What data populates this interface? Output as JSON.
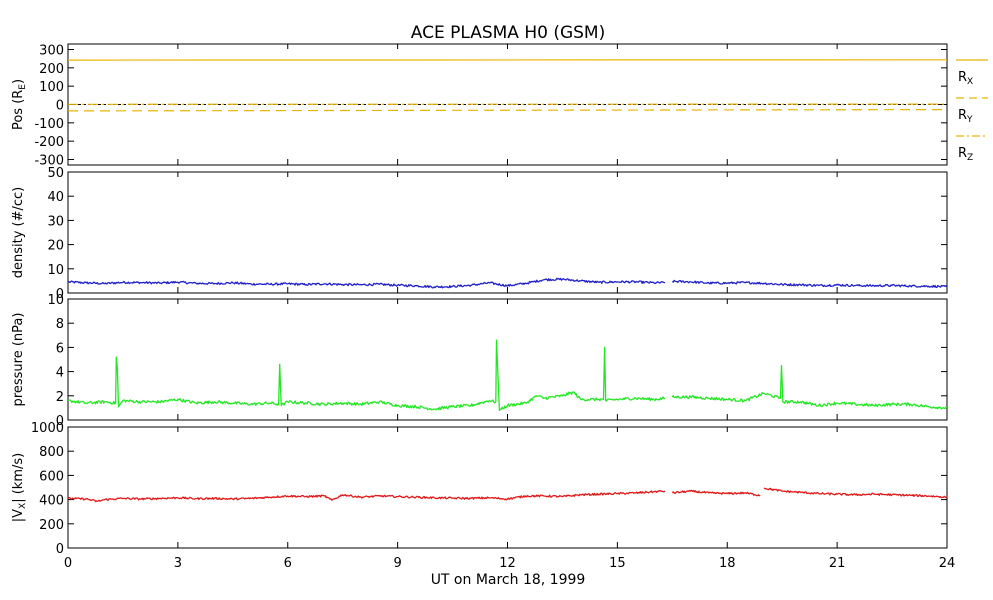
{
  "chart_data": {
    "title": "ACE PLASMA H0 (GSM)",
    "xlabel": "UT on March 18, 1999",
    "x_range": [
      0,
      24
    ],
    "x_ticks": [
      0,
      3,
      6,
      9,
      12,
      15,
      18,
      21,
      24
    ],
    "x_tick_labels": [
      "0",
      "3",
      "6",
      "9",
      "12",
      "15",
      "18",
      "21",
      "24"
    ],
    "panels": [
      {
        "id": "pos",
        "type": "line",
        "ylabel": "Pos (R",
        "ylabel_sub": "E",
        "ylabel_suffix": ")",
        "ylim": [
          -330,
          330
        ],
        "y_ticks": [
          -300,
          -200,
          -100,
          0,
          100,
          200,
          300
        ],
        "y_tick_labels": [
          "-300",
          "-200",
          "-100",
          "0",
          "100",
          "200",
          "300"
        ],
        "series": [
          {
            "name": "R",
            "sub": "X",
            "color": "#e8b400",
            "style": "solid",
            "values": [
              {
                "x": 0,
                "y": 242
              },
              {
                "x": 24,
                "y": 244
              }
            ]
          },
          {
            "name": "R",
            "sub": "Y",
            "color": "#e8b400",
            "style": "dashed",
            "values": [
              {
                "x": 0,
                "y": -35
              },
              {
                "x": 24,
                "y": -28
              }
            ]
          },
          {
            "name": "R",
            "sub": "Z",
            "color": "#e8b400",
            "style": "dashdot",
            "values": [
              {
                "x": 0,
                "y": 1
              },
              {
                "x": 24,
                "y": 2
              }
            ]
          }
        ],
        "reference_line": 0
      },
      {
        "id": "density",
        "type": "line",
        "ylabel": "density (#/cc)",
        "ylim": [
          0,
          50
        ],
        "y_ticks": [
          0,
          10,
          20,
          30,
          40,
          50
        ],
        "y_tick_labels": [
          "0",
          "10",
          "20",
          "30",
          "40",
          "50"
        ],
        "series": [
          {
            "color": "#2020c8",
            "gaps": [
              [
                16.3,
                16.5
              ]
            ],
            "values": [
              {
                "x": 0,
                "y": 4.6
              },
              {
                "x": 0.5,
                "y": 4.2
              },
              {
                "x": 1,
                "y": 3.9
              },
              {
                "x": 1.5,
                "y": 4.4
              },
              {
                "x": 2,
                "y": 4.3
              },
              {
                "x": 2.5,
                "y": 4.1
              },
              {
                "x": 3,
                "y": 4.5
              },
              {
                "x": 3.5,
                "y": 4.0
              },
              {
                "x": 4,
                "y": 3.9
              },
              {
                "x": 4.5,
                "y": 4.2
              },
              {
                "x": 5,
                "y": 3.7
              },
              {
                "x": 5.5,
                "y": 3.6
              },
              {
                "x": 6,
                "y": 3.8
              },
              {
                "x": 6.5,
                "y": 3.5
              },
              {
                "x": 7,
                "y": 3.8
              },
              {
                "x": 7.5,
                "y": 3.5
              },
              {
                "x": 8,
                "y": 3.4
              },
              {
                "x": 8.5,
                "y": 3.6
              },
              {
                "x": 9,
                "y": 3.2
              },
              {
                "x": 9.5,
                "y": 3.0
              },
              {
                "x": 10,
                "y": 2.5
              },
              {
                "x": 10.5,
                "y": 2.7
              },
              {
                "x": 11,
                "y": 3.2
              },
              {
                "x": 11.5,
                "y": 4.2
              },
              {
                "x": 12,
                "y": 3.0
              },
              {
                "x": 12.5,
                "y": 4.0
              },
              {
                "x": 13,
                "y": 5.5
              },
              {
                "x": 13.5,
                "y": 5.7
              },
              {
                "x": 14,
                "y": 5.0
              },
              {
                "x": 14.5,
                "y": 4.4
              },
              {
                "x": 15,
                "y": 4.6
              },
              {
                "x": 15.5,
                "y": 4.6
              },
              {
                "x": 16,
                "y": 4.2
              },
              {
                "x": 16.3,
                "y": 4.3
              },
              {
                "x": 16.5,
                "y": 4.8
              },
              {
                "x": 17,
                "y": 4.6
              },
              {
                "x": 17.5,
                "y": 4.1
              },
              {
                "x": 18,
                "y": 4.1
              },
              {
                "x": 18.5,
                "y": 4.3
              },
              {
                "x": 19,
                "y": 4.0
              },
              {
                "x": 19.5,
                "y": 3.5
              },
              {
                "x": 20,
                "y": 3.4
              },
              {
                "x": 20.5,
                "y": 3.1
              },
              {
                "x": 21,
                "y": 3.3
              },
              {
                "x": 21.5,
                "y": 3.1
              },
              {
                "x": 22,
                "y": 3.0
              },
              {
                "x": 22.5,
                "y": 3.1
              },
              {
                "x": 23,
                "y": 2.9
              },
              {
                "x": 23.5,
                "y": 2.8
              },
              {
                "x": 24,
                "y": 2.6
              }
            ]
          }
        ]
      },
      {
        "id": "pressure",
        "type": "line",
        "ylabel": "pressure (nPa)",
        "ylim": [
          0,
          10
        ],
        "y_ticks": [
          0,
          2,
          4,
          6,
          8,
          10
        ],
        "y_tick_labels": [
          "0",
          "2",
          "4",
          "6",
          "8",
          "10"
        ],
        "series": [
          {
            "color": "#22e822",
            "gaps": [
              [
                16.3,
                16.5
              ]
            ],
            "values": [
              {
                "x": 0,
                "y": 1.6
              },
              {
                "x": 0.5,
                "y": 1.4
              },
              {
                "x": 1,
                "y": 1.5
              },
              {
                "x": 1.3,
                "y": 1.4
              },
              {
                "x": 1.32,
                "y": 5.2
              },
              {
                "x": 1.35,
                "y": 4.2
              },
              {
                "x": 1.38,
                "y": 1.1
              },
              {
                "x": 1.5,
                "y": 1.6
              },
              {
                "x": 2,
                "y": 1.5
              },
              {
                "x": 2.5,
                "y": 1.5
              },
              {
                "x": 3,
                "y": 1.7
              },
              {
                "x": 3.5,
                "y": 1.4
              },
              {
                "x": 4,
                "y": 1.5
              },
              {
                "x": 4.5,
                "y": 1.4
              },
              {
                "x": 5,
                "y": 1.3
              },
              {
                "x": 5.5,
                "y": 1.4
              },
              {
                "x": 5.75,
                "y": 1.3
              },
              {
                "x": 5.78,
                "y": 4.6
              },
              {
                "x": 5.82,
                "y": 1.2
              },
              {
                "x": 6,
                "y": 1.5
              },
              {
                "x": 6.5,
                "y": 1.4
              },
              {
                "x": 7,
                "y": 1.3
              },
              {
                "x": 7.5,
                "y": 1.4
              },
              {
                "x": 8,
                "y": 1.3
              },
              {
                "x": 8.5,
                "y": 1.5
              },
              {
                "x": 9,
                "y": 1.2
              },
              {
                "x": 9.5,
                "y": 1.1
              },
              {
                "x": 10,
                "y": 0.9
              },
              {
                "x": 10.5,
                "y": 1.1
              },
              {
                "x": 11,
                "y": 1.2
              },
              {
                "x": 11.5,
                "y": 1.6
              },
              {
                "x": 11.68,
                "y": 1.5
              },
              {
                "x": 11.7,
                "y": 6.6
              },
              {
                "x": 11.73,
                "y": 4.4
              },
              {
                "x": 11.78,
                "y": 0.8
              },
              {
                "x": 12,
                "y": 1.2
              },
              {
                "x": 12.5,
                "y": 1.4
              },
              {
                "x": 12.8,
                "y": 2.0
              },
              {
                "x": 13,
                "y": 1.8
              },
              {
                "x": 13.5,
                "y": 2.0
              },
              {
                "x": 13.8,
                "y": 2.3
              },
              {
                "x": 14,
                "y": 1.7
              },
              {
                "x": 14.5,
                "y": 1.7
              },
              {
                "x": 14.62,
                "y": 1.7
              },
              {
                "x": 14.65,
                "y": 6.0
              },
              {
                "x": 14.68,
                "y": 1.6
              },
              {
                "x": 15,
                "y": 1.7
              },
              {
                "x": 15.5,
                "y": 1.8
              },
              {
                "x": 16,
                "y": 1.7
              },
              {
                "x": 16.3,
                "y": 1.8
              },
              {
                "x": 16.5,
                "y": 1.9
              },
              {
                "x": 17,
                "y": 1.9
              },
              {
                "x": 17.5,
                "y": 1.8
              },
              {
                "x": 18,
                "y": 1.7
              },
              {
                "x": 18.5,
                "y": 1.6
              },
              {
                "x": 19,
                "y": 2.2
              },
              {
                "x": 19.45,
                "y": 1.8
              },
              {
                "x": 19.48,
                "y": 4.5
              },
              {
                "x": 19.52,
                "y": 1.5
              },
              {
                "x": 20,
                "y": 1.5
              },
              {
                "x": 20.5,
                "y": 1.2
              },
              {
                "x": 21,
                "y": 1.4
              },
              {
                "x": 21.5,
                "y": 1.3
              },
              {
                "x": 22,
                "y": 1.2
              },
              {
                "x": 22.5,
                "y": 1.3
              },
              {
                "x": 23,
                "y": 1.3
              },
              {
                "x": 23.5,
                "y": 1.1
              },
              {
                "x": 24,
                "y": 1.0
              }
            ]
          }
        ]
      },
      {
        "id": "vx",
        "type": "line",
        "ylabel_prefix": "|V",
        "ylabel_sub": "X",
        "ylabel_suffix": "| (km/s)",
        "ylim": [
          0,
          1000
        ],
        "y_ticks": [
          0,
          200,
          400,
          600,
          800,
          1000
        ],
        "y_tick_labels": [
          "0",
          "200",
          "400",
          "600",
          "800",
          "1000"
        ],
        "series": [
          {
            "color": "#e01818",
            "gaps": [
              [
                16.3,
                16.5
              ],
              [
                18.9,
                19.0
              ]
            ],
            "values": [
              {
                "x": 0,
                "y": 410
              },
              {
                "x": 0.5,
                "y": 405
              },
              {
                "x": 0.8,
                "y": 385
              },
              {
                "x": 1,
                "y": 400
              },
              {
                "x": 1.5,
                "y": 410
              },
              {
                "x": 2,
                "y": 405
              },
              {
                "x": 2.5,
                "y": 410
              },
              {
                "x": 3,
                "y": 415
              },
              {
                "x": 3.5,
                "y": 408
              },
              {
                "x": 4,
                "y": 410
              },
              {
                "x": 4.5,
                "y": 405
              },
              {
                "x": 5,
                "y": 410
              },
              {
                "x": 5.5,
                "y": 420
              },
              {
                "x": 6,
                "y": 430
              },
              {
                "x": 6.5,
                "y": 425
              },
              {
                "x": 7,
                "y": 430
              },
              {
                "x": 7.2,
                "y": 395
              },
              {
                "x": 7.5,
                "y": 440
              },
              {
                "x": 8,
                "y": 420
              },
              {
                "x": 8.5,
                "y": 430
              },
              {
                "x": 9,
                "y": 425
              },
              {
                "x": 9.5,
                "y": 420
              },
              {
                "x": 10,
                "y": 415
              },
              {
                "x": 10.5,
                "y": 412
              },
              {
                "x": 11,
                "y": 410
              },
              {
                "x": 11.5,
                "y": 415
              },
              {
                "x": 12,
                "y": 405
              },
              {
                "x": 12.5,
                "y": 430
              },
              {
                "x": 13,
                "y": 430
              },
              {
                "x": 13.5,
                "y": 425
              },
              {
                "x": 14,
                "y": 440
              },
              {
                "x": 14.5,
                "y": 445
              },
              {
                "x": 15,
                "y": 450
              },
              {
                "x": 15.5,
                "y": 455
              },
              {
                "x": 16,
                "y": 465
              },
              {
                "x": 16.3,
                "y": 470
              },
              {
                "x": 16.5,
                "y": 455
              },
              {
                "x": 17,
                "y": 470
              },
              {
                "x": 17.5,
                "y": 455
              },
              {
                "x": 18,
                "y": 450
              },
              {
                "x": 18.5,
                "y": 455
              },
              {
                "x": 18.9,
                "y": 435
              },
              {
                "x": 19.0,
                "y": 495
              },
              {
                "x": 19.5,
                "y": 470
              },
              {
                "x": 20,
                "y": 460
              },
              {
                "x": 20.5,
                "y": 450
              },
              {
                "x": 21,
                "y": 445
              },
              {
                "x": 21.5,
                "y": 440
              },
              {
                "x": 22,
                "y": 445
              },
              {
                "x": 22.5,
                "y": 440
              },
              {
                "x": 23,
                "y": 435
              },
              {
                "x": 23.5,
                "y": 430
              },
              {
                "x": 24,
                "y": 420
              }
            ]
          }
        ]
      }
    ]
  }
}
